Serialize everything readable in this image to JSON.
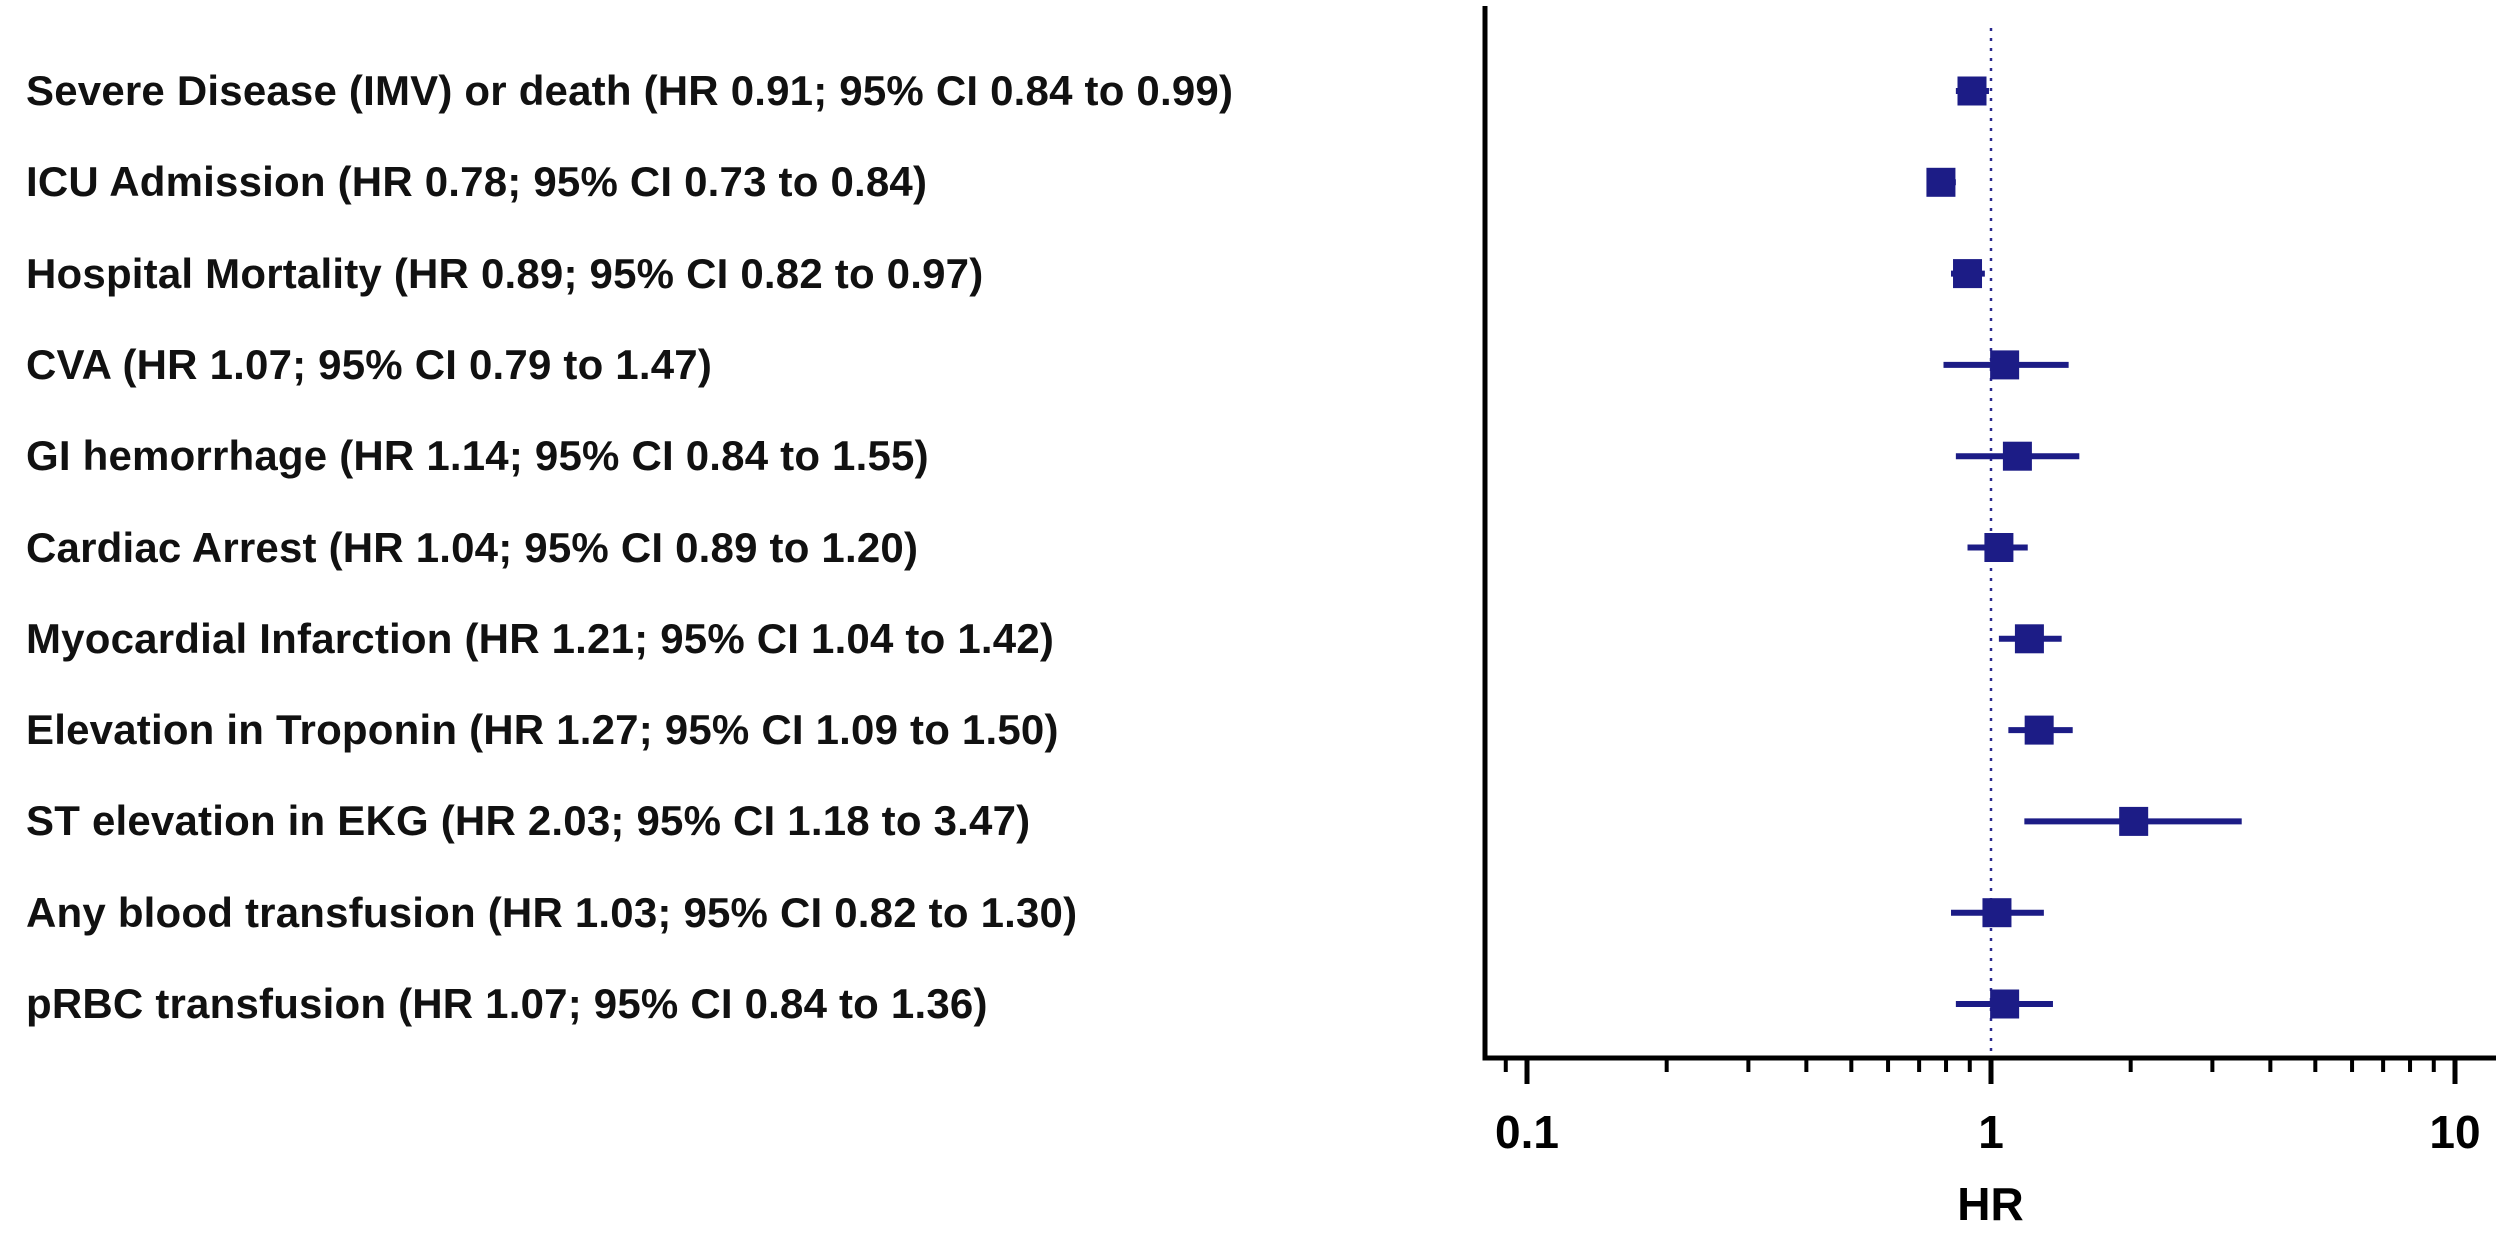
{
  "figure": {
    "background": "#ffffff"
  },
  "chart_data": {
    "type": "scatter",
    "subtype": "forest-plot",
    "title": "",
    "xlabel": "HR",
    "ylabel": "",
    "x_scale": "log",
    "xlim": [
      0.08,
      12
    ],
    "grid": false,
    "legend_position": "none",
    "reference_line": 1,
    "x_ticks_major": [
      {
        "value": 0.1,
        "label": "0.1"
      },
      {
        "value": 1,
        "label": "1"
      },
      {
        "value": 10,
        "label": "10"
      }
    ],
    "x_ticks_minor": [
      0.09,
      0.2,
      0.3,
      0.4,
      0.5,
      0.6,
      0.7,
      0.8,
      0.9,
      2,
      3,
      4,
      5,
      6,
      7,
      8,
      9
    ],
    "colors": {
      "marker": "#1c1c86",
      "ci_line": "#1c1c86",
      "reference_line": "#2b2b8f",
      "axis": "#000000",
      "label_text": "#111111"
    },
    "rows": [
      {
        "label": "Severe Disease (IMV) or death (HR 0.91; 95% CI 0.84 to 0.99)",
        "hr": 0.91,
        "ci_low": 0.84,
        "ci_high": 0.99
      },
      {
        "label": "ICU Admission (HR 0.78; 95% CI 0.73 to 0.84)",
        "hr": 0.78,
        "ci_low": 0.73,
        "ci_high": 0.84
      },
      {
        "label": "Hospital Mortality (HR 0.89; 95% CI 0.82 to 0.97)",
        "hr": 0.89,
        "ci_low": 0.82,
        "ci_high": 0.97
      },
      {
        "label": "CVA (HR 1.07; 95% CI 0.79 to 1.47)",
        "hr": 1.07,
        "ci_low": 0.79,
        "ci_high": 1.47
      },
      {
        "label": "GI hemorrhage (HR 1.14; 95% CI 0.84 to 1.55)",
        "hr": 1.14,
        "ci_low": 0.84,
        "ci_high": 1.55
      },
      {
        "label": "Cardiac Arrest (HR 1.04; 95% CI 0.89 to 1.20)",
        "hr": 1.04,
        "ci_low": 0.89,
        "ci_high": 1.2
      },
      {
        "label": "Myocardial Infarction (HR 1.21; 95% CI 1.04 to 1.42)",
        "hr": 1.21,
        "ci_low": 1.04,
        "ci_high": 1.42
      },
      {
        "label": "Elevation in Troponin (HR 1.27; 95% CI 1.09 to 1.50)",
        "hr": 1.27,
        "ci_low": 1.09,
        "ci_high": 1.5
      },
      {
        "label": "ST elevation in EKG (HR 2.03; 95% CI 1.18 to 3.47)",
        "hr": 2.03,
        "ci_low": 1.18,
        "ci_high": 3.47
      },
      {
        "label": "Any blood transfusion (HR 1.03; 95% CI 0.82 to 1.30)",
        "hr": 1.03,
        "ci_low": 0.82,
        "ci_high": 1.3
      },
      {
        "label": "pRBC transfusion (HR 1.07; 95% CI 0.84 to 1.36)",
        "hr": 1.07,
        "ci_low": 0.84,
        "ci_high": 1.36
      }
    ]
  }
}
